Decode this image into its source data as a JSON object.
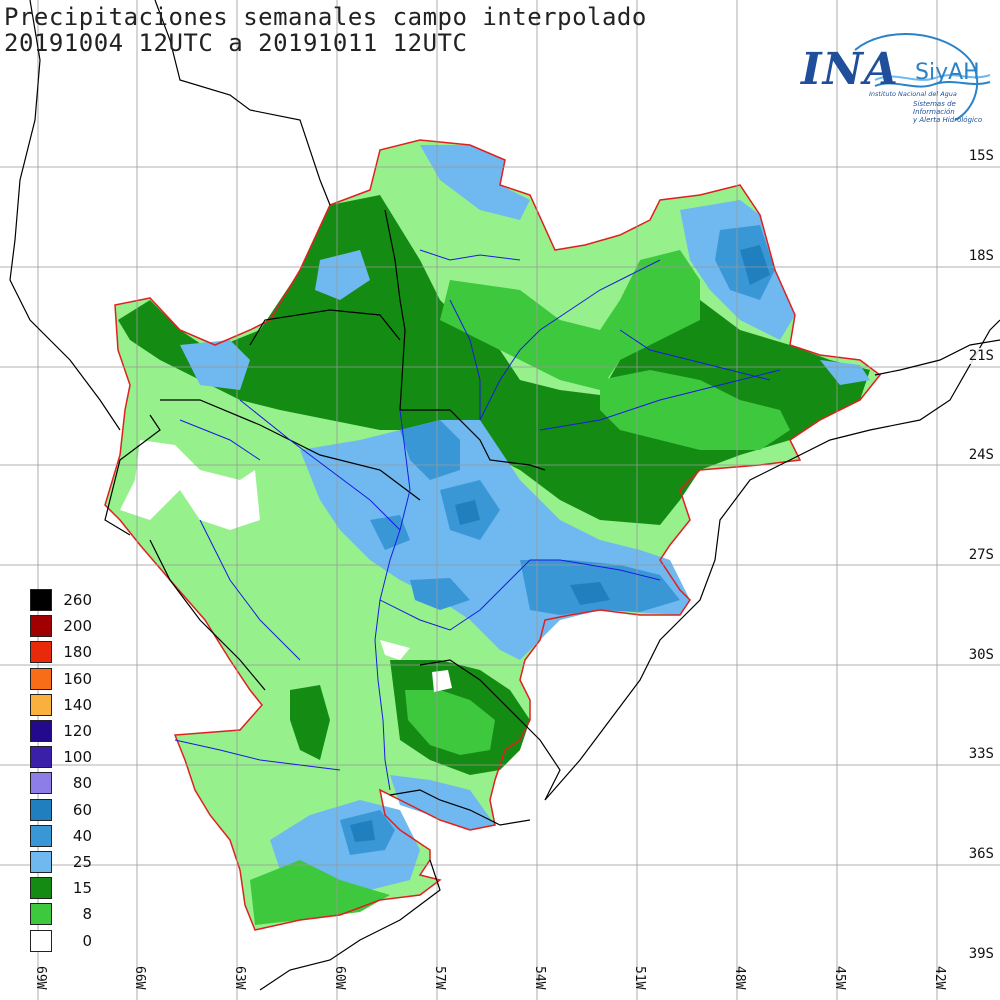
{
  "title": {
    "line1": "Precipitaciones semanales campo interpolado",
    "line2": "20191004 12UTC a 20191011 12UTC"
  },
  "logo": {
    "ina": "INA",
    "siyah": "SiyAH",
    "institute": "Instituto Nacional del Agua",
    "system_line1": "Sistemas de Información",
    "system_line2": "y Alerta Hidrológico"
  },
  "latitude_labels": [
    "15S",
    "18S",
    "21S",
    "24S",
    "27S",
    "30S",
    "33S",
    "36S",
    "39S"
  ],
  "longitude_labels": [
    "69W",
    "66W",
    "63W",
    "60W",
    "57W",
    "54W",
    "51W",
    "48W",
    "45W",
    "42W"
  ],
  "legend": [
    {
      "label": "260",
      "color": "#000000"
    },
    {
      "label": "200",
      "color": "#a00000"
    },
    {
      "label": "180",
      "color": "#e82a0a"
    },
    {
      "label": "160",
      "color": "#f86e18"
    },
    {
      "label": "140",
      "color": "#fab03c"
    },
    {
      "label": "120",
      "color": "#230a8c"
    },
    {
      "label": "100",
      "color": "#3a1fa8"
    },
    {
      "label": "80",
      "color": "#8c7ee6"
    },
    {
      "label": "60",
      "color": "#1f7fbf"
    },
    {
      "label": "40",
      "color": "#3a97d6"
    },
    {
      "label": "25",
      "color": "#6fb8f0"
    },
    {
      "label": "15",
      "color": "#148c14"
    },
    {
      "label": "8",
      "color": "#3ec83e"
    },
    {
      "label": "0",
      "color": "#ffffff"
    }
  ],
  "colors": {
    "basin_outline": "#e02020",
    "rivers": "#1a1ae0",
    "borders": "#000000",
    "light_green": "#96f08c",
    "grid": "#999999"
  }
}
